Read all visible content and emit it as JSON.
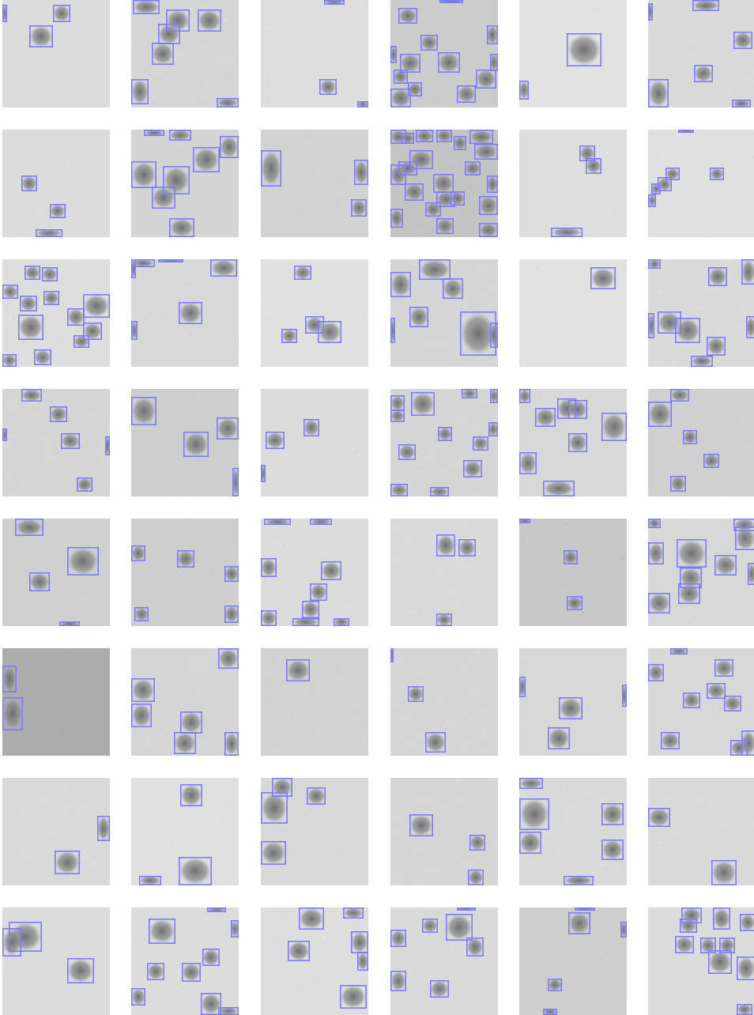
{
  "grid": {
    "rows": 8,
    "cols": 6
  },
  "colors": {
    "box_stroke": "#7b7bff",
    "background": "#ffffff",
    "tile_base": "#dcdcdc",
    "blob": "#6f6f6f"
  }
}
